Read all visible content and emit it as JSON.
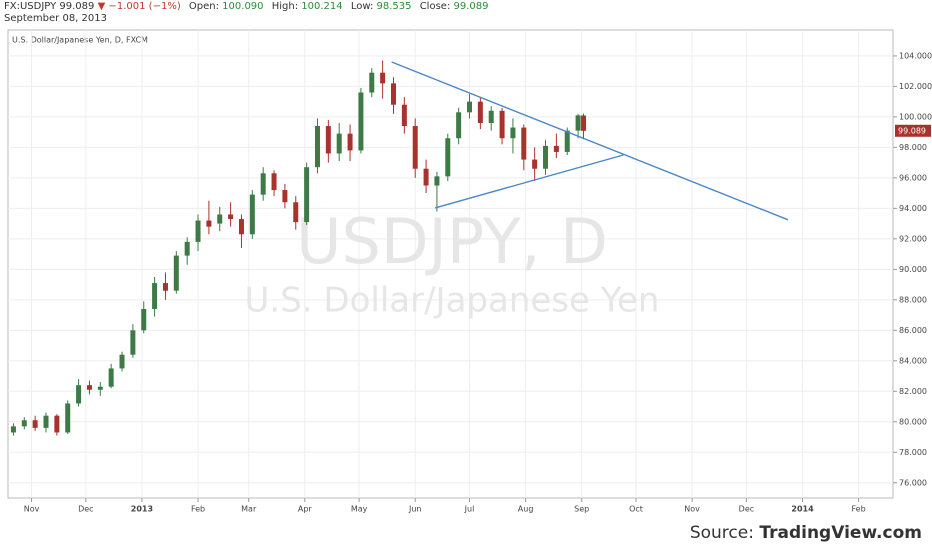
{
  "header": {
    "symbol": "FX:USDJPY",
    "price": "99.089",
    "change": "−1.001 (−1%)",
    "fields": [
      {
        "label": "Open:",
        "value": "100.090"
      },
      {
        "label": "High:",
        "value": "100.214"
      },
      {
        "label": "Low:",
        "value": "98.535"
      },
      {
        "label": "Close:",
        "value": "99.089"
      }
    ],
    "date": "September 08, 2013"
  },
  "chart_data": {
    "type": "candlestick",
    "subtitle": "U.S. Dollar/Japanese Yen, D, FXCM",
    "watermark": {
      "title": "USDJPY, D",
      "subtitle": "U.S. Dollar/Japanese Yen"
    },
    "up_color": "#3d7a46",
    "down_color": "#a8322c",
    "grid": true,
    "x": [
      21,
      27,
      33,
      39,
      45,
      51,
      57,
      63,
      69,
      75,
      81,
      87,
      93,
      99,
      105,
      111,
      117,
      123,
      129,
      135,
      141,
      147,
      153,
      159,
      165,
      171,
      177,
      183,
      189,
      195,
      201,
      207,
      213,
      219,
      225,
      231,
      237,
      243,
      249,
      255,
      261,
      267,
      273,
      279,
      285,
      291,
      297,
      303,
      309,
      315,
      321,
      327,
      333,
      336
    ],
    "open": [
      79.3,
      79.7,
      80.1,
      79.6,
      80.4,
      79.3,
      81.2,
      82.4,
      82.1,
      82.3,
      83.5,
      84.4,
      86.0,
      87.4,
      89.1,
      88.6,
      90.9,
      91.8,
      93.2,
      93.0,
      93.6,
      93.3,
      92.3,
      94.9,
      96.3,
      95.2,
      94.4,
      93.1,
      96.7,
      99.4,
      97.6,
      98.9,
      97.8,
      101.6,
      102.9,
      102.2,
      100.8,
      99.4,
      96.6,
      95.5,
      96.1,
      98.6,
      100.3,
      101.0,
      99.6,
      100.4,
      98.6,
      99.3,
      97.2,
      96.6,
      98.1,
      97.7,
      99.1,
      100.09
    ],
    "high": [
      79.9,
      80.3,
      80.4,
      80.6,
      80.5,
      81.4,
      82.8,
      82.7,
      82.6,
      83.8,
      84.6,
      86.4,
      87.9,
      89.5,
      89.8,
      91.2,
      92.1,
      93.6,
      94.5,
      94.1,
      94.4,
      93.6,
      95.2,
      96.7,
      96.5,
      95.6,
      94.8,
      97.0,
      99.9,
      99.8,
      99.6,
      99.5,
      101.9,
      103.2,
      103.7,
      102.6,
      101.3,
      99.9,
      97.2,
      96.4,
      98.9,
      100.6,
      101.5,
      101.3,
      100.7,
      100.6,
      99.9,
      99.5,
      98.0,
      98.5,
      98.9,
      99.3,
      100.2,
      100.214
    ],
    "low": [
      79.1,
      79.5,
      79.4,
      79.3,
      79.1,
      79.2,
      81.0,
      81.8,
      81.7,
      82.2,
      83.3,
      84.2,
      85.8,
      86.9,
      88.0,
      88.4,
      90.3,
      91.2,
      92.3,
      92.5,
      92.8,
      91.4,
      92.0,
      94.5,
      94.8,
      94.0,
      92.6,
      92.9,
      96.3,
      97.0,
      97.1,
      97.1,
      97.6,
      101.3,
      101.2,
      100.2,
      98.9,
      96.0,
      95.0,
      93.8,
      95.8,
      98.2,
      99.9,
      99.2,
      99.1,
      98.2,
      97.6,
      96.5,
      95.8,
      96.2,
      97.3,
      97.5,
      98.6,
      98.535
    ],
    "close": [
      79.7,
      80.1,
      79.6,
      80.4,
      79.3,
      81.2,
      82.4,
      82.1,
      82.3,
      83.5,
      84.4,
      86.0,
      87.4,
      89.1,
      88.6,
      90.9,
      91.8,
      93.2,
      92.8,
      93.6,
      93.3,
      92.3,
      94.9,
      96.3,
      95.2,
      94.4,
      93.1,
      96.7,
      99.4,
      97.6,
      98.9,
      97.8,
      101.6,
      102.9,
      102.2,
      100.8,
      99.4,
      96.6,
      95.5,
      96.1,
      98.6,
      100.3,
      101.0,
      99.6,
      100.4,
      98.6,
      99.3,
      97.2,
      96.6,
      98.1,
      97.7,
      99.1,
      100.1,
      99.089
    ],
    "price_tag": {
      "value": 99.089,
      "label": "99.089"
    },
    "trendlines": [
      {
        "color": "#4a86c8",
        "x": [
          230,
          449
        ],
        "y": [
          103.6,
          93.25
        ]
      },
      {
        "color": "#4a86c8",
        "x": [
          254,
          358
        ],
        "y": [
          94.03,
          97.5
        ]
      }
    ],
    "xlim": [
      18,
      507
    ],
    "ylim": [
      75,
      105.7
    ],
    "xticks": [
      {
        "value": 31,
        "label": "Nov"
      },
      {
        "value": 61,
        "label": "Dec"
      },
      {
        "value": 92,
        "label": "2013"
      },
      {
        "value": 123,
        "label": "Feb"
      },
      {
        "value": 151,
        "label": "Mar"
      },
      {
        "value": 182,
        "label": "Apr"
      },
      {
        "value": 212,
        "label": "May"
      },
      {
        "value": 243,
        "label": "Jun"
      },
      {
        "value": 273,
        "label": "Jul"
      },
      {
        "value": 304,
        "label": "Aug"
      },
      {
        "value": 335,
        "label": "Sep"
      },
      {
        "value": 365,
        "label": "Oct"
      },
      {
        "value": 396,
        "label": "Nov"
      },
      {
        "value": 426,
        "label": "Dec"
      },
      {
        "value": 457,
        "label": "2014"
      },
      {
        "value": 488,
        "label": "Feb"
      }
    ],
    "yticks": [
      {
        "value": 76,
        "label": "76.000"
      },
      {
        "value": 78,
        "label": "78.000"
      },
      {
        "value": 80,
        "label": "80.000"
      },
      {
        "value": 82,
        "label": "82.000"
      },
      {
        "value": 84,
        "label": "84.000"
      },
      {
        "value": 86,
        "label": "86.000"
      },
      {
        "value": 88,
        "label": "88.000"
      },
      {
        "value": 90,
        "label": "90.000"
      },
      {
        "value": 92,
        "label": "92.000"
      },
      {
        "value": 94,
        "label": "94.000"
      },
      {
        "value": 96,
        "label": "96.000"
      },
      {
        "value": 98,
        "label": "98.000"
      },
      {
        "value": 100,
        "label": "100.000"
      },
      {
        "value": 102,
        "label": "102.000"
      },
      {
        "value": 104,
        "label": "104.000"
      }
    ]
  },
  "footer": {
    "source_prefix": "Source:",
    "source_site": "TradingView.com"
  }
}
